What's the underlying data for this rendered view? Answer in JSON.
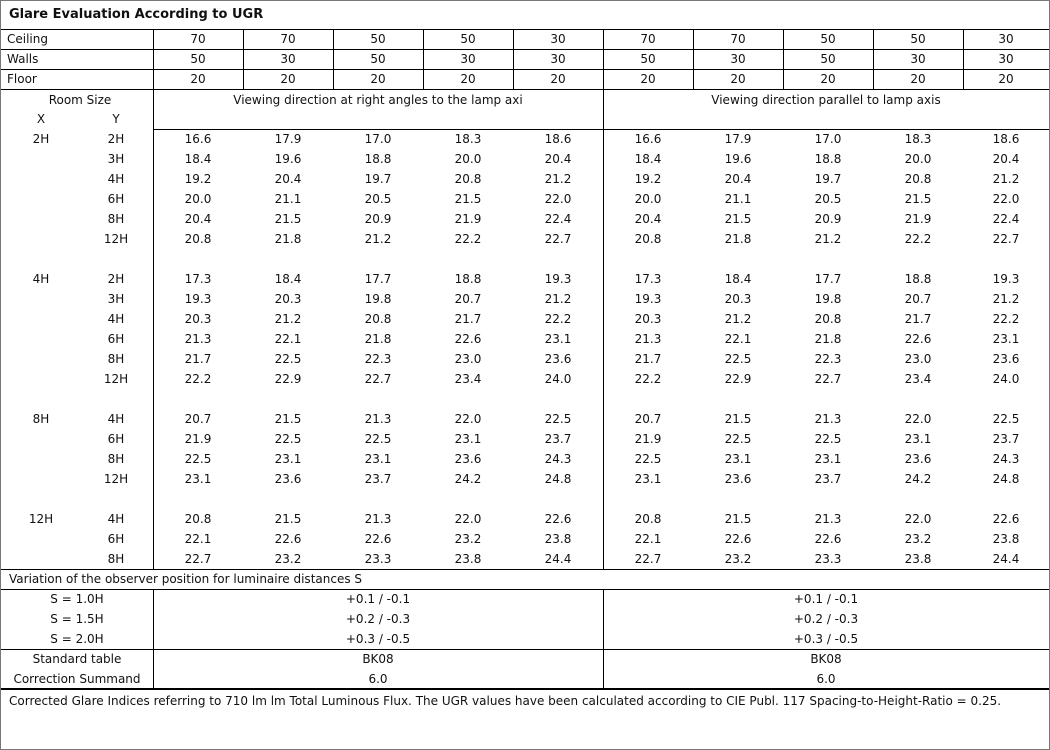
{
  "title": "Glare Evaluation According to UGR",
  "reflectances": [
    {
      "label": "Ceiling",
      "values": [
        "70",
        "70",
        "50",
        "50",
        "30",
        "70",
        "70",
        "50",
        "50",
        "30"
      ]
    },
    {
      "label": "Walls",
      "values": [
        "50",
        "30",
        "50",
        "30",
        "30",
        "50",
        "30",
        "50",
        "30",
        "30"
      ]
    },
    {
      "label": "Floor",
      "values": [
        "20",
        "20",
        "20",
        "20",
        "20",
        "20",
        "20",
        "20",
        "20",
        "20"
      ]
    }
  ],
  "room_size_label": "Room Size",
  "x_label": "X",
  "y_label": "Y",
  "direction_left": "Viewing direction at right angles to the lamp axi",
  "direction_right": "Viewing direction parallel to lamp axis",
  "groups": [
    {
      "x": "2H",
      "rows": [
        {
          "y": "2H",
          "v": [
            "16.6",
            "17.9",
            "17.0",
            "18.3",
            "18.6",
            "16.6",
            "17.9",
            "17.0",
            "18.3",
            "18.6"
          ]
        },
        {
          "y": "3H",
          "v": [
            "18.4",
            "19.6",
            "18.8",
            "20.0",
            "20.4",
            "18.4",
            "19.6",
            "18.8",
            "20.0",
            "20.4"
          ]
        },
        {
          "y": "4H",
          "v": [
            "19.2",
            "20.4",
            "19.7",
            "20.8",
            "21.2",
            "19.2",
            "20.4",
            "19.7",
            "20.8",
            "21.2"
          ]
        },
        {
          "y": "6H",
          "v": [
            "20.0",
            "21.1",
            "20.5",
            "21.5",
            "22.0",
            "20.0",
            "21.1",
            "20.5",
            "21.5",
            "22.0"
          ]
        },
        {
          "y": "8H",
          "v": [
            "20.4",
            "21.5",
            "20.9",
            "21.9",
            "22.4",
            "20.4",
            "21.5",
            "20.9",
            "21.9",
            "22.4"
          ]
        },
        {
          "y": "12H",
          "v": [
            "20.8",
            "21.8",
            "21.2",
            "22.2",
            "22.7",
            "20.8",
            "21.8",
            "21.2",
            "22.2",
            "22.7"
          ]
        }
      ]
    },
    {
      "x": "4H",
      "rows": [
        {
          "y": "2H",
          "v": [
            "17.3",
            "18.4",
            "17.7",
            "18.8",
            "19.3",
            "17.3",
            "18.4",
            "17.7",
            "18.8",
            "19.3"
          ]
        },
        {
          "y": "3H",
          "v": [
            "19.3",
            "20.3",
            "19.8",
            "20.7",
            "21.2",
            "19.3",
            "20.3",
            "19.8",
            "20.7",
            "21.2"
          ]
        },
        {
          "y": "4H",
          "v": [
            "20.3",
            "21.2",
            "20.8",
            "21.7",
            "22.2",
            "20.3",
            "21.2",
            "20.8",
            "21.7",
            "22.2"
          ]
        },
        {
          "y": "6H",
          "v": [
            "21.3",
            "22.1",
            "21.8",
            "22.6",
            "23.1",
            "21.3",
            "22.1",
            "21.8",
            "22.6",
            "23.1"
          ]
        },
        {
          "y": "8H",
          "v": [
            "21.7",
            "22.5",
            "22.3",
            "23.0",
            "23.6",
            "21.7",
            "22.5",
            "22.3",
            "23.0",
            "23.6"
          ]
        },
        {
          "y": "12H",
          "v": [
            "22.2",
            "22.9",
            "22.7",
            "23.4",
            "24.0",
            "22.2",
            "22.9",
            "22.7",
            "23.4",
            "24.0"
          ]
        }
      ]
    },
    {
      "x": "8H",
      "rows": [
        {
          "y": "4H",
          "v": [
            "20.7",
            "21.5",
            "21.3",
            "22.0",
            "22.5",
            "20.7",
            "21.5",
            "21.3",
            "22.0",
            "22.5"
          ]
        },
        {
          "y": "6H",
          "v": [
            "21.9",
            "22.5",
            "22.5",
            "23.1",
            "23.7",
            "21.9",
            "22.5",
            "22.5",
            "23.1",
            "23.7"
          ]
        },
        {
          "y": "8H",
          "v": [
            "22.5",
            "23.1",
            "23.1",
            "23.6",
            "24.3",
            "22.5",
            "23.1",
            "23.1",
            "23.6",
            "24.3"
          ]
        },
        {
          "y": "12H",
          "v": [
            "23.1",
            "23.6",
            "23.7",
            "24.2",
            "24.8",
            "23.1",
            "23.6",
            "23.7",
            "24.2",
            "24.8"
          ]
        }
      ]
    },
    {
      "x": "12H",
      "rows": [
        {
          "y": "4H",
          "v": [
            "20.8",
            "21.5",
            "21.3",
            "22.0",
            "22.6",
            "20.8",
            "21.5",
            "21.3",
            "22.0",
            "22.6"
          ]
        },
        {
          "y": "6H",
          "v": [
            "22.1",
            "22.6",
            "22.6",
            "23.2",
            "23.8",
            "22.1",
            "22.6",
            "22.6",
            "23.2",
            "23.8"
          ]
        },
        {
          "y": "8H",
          "v": [
            "22.7",
            "23.2",
            "23.3",
            "23.8",
            "24.4",
            "22.7",
            "23.2",
            "23.3",
            "23.8",
            "24.4"
          ]
        }
      ]
    }
  ],
  "variation_title": "Variation of the observer position for luminaire distances S",
  "variation": [
    {
      "label": "S = 1.0H",
      "left": "+0.1 / -0.1",
      "right": "+0.1 / -0.1"
    },
    {
      "label": "S = 1.5H",
      "left": "+0.2 / -0.3",
      "right": "+0.2 / -0.3"
    },
    {
      "label": "S = 2.0H",
      "left": "+0.3 / -0.5",
      "right": "+0.3 / -0.5"
    }
  ],
  "standard": [
    {
      "label": "Standard table",
      "left": "BK08",
      "right": "BK08"
    },
    {
      "label": "Correction Summand",
      "left": "6.0",
      "right": "6.0"
    }
  ],
  "footer": "Corrected Glare Indices referring to 710 lm lm Total Luminous Flux. The UGR values have been calculated according to CIE Publ. 117    Spacing-to-Height-Ratio = 0.25."
}
